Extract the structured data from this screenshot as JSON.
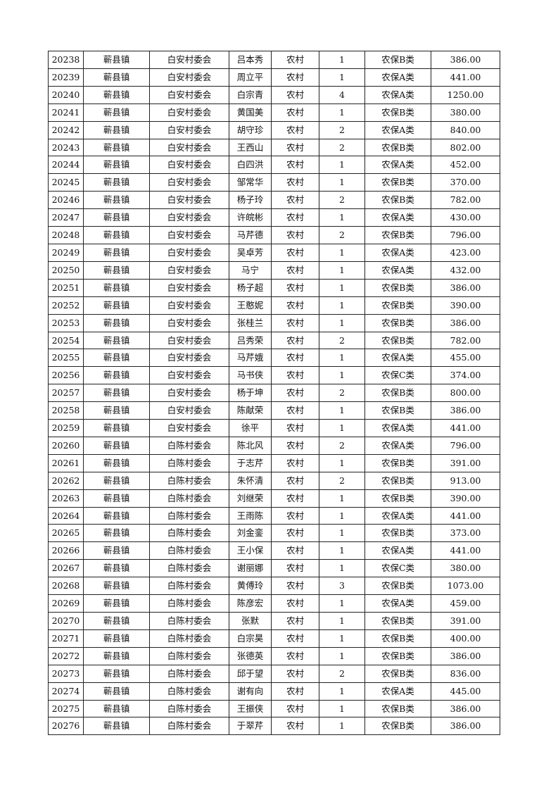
{
  "rows": [
    [
      "20238",
      "蕲县镇",
      "白安村委会",
      "吕本秀",
      "农村",
      "1",
      "农保B类",
      "386.00"
    ],
    [
      "20239",
      "蕲县镇",
      "白安村委会",
      "周立平",
      "农村",
      "1",
      "农保A类",
      "441.00"
    ],
    [
      "20240",
      "蕲县镇",
      "白安村委会",
      "白宗青",
      "农村",
      "4",
      "农保A类",
      "1250.00"
    ],
    [
      "20241",
      "蕲县镇",
      "白安村委会",
      "黄国美",
      "农村",
      "1",
      "农保B类",
      "380.00"
    ],
    [
      "20242",
      "蕲县镇",
      "白安村委会",
      "胡守珍",
      "农村",
      "2",
      "农保A类",
      "840.00"
    ],
    [
      "20243",
      "蕲县镇",
      "白安村委会",
      "王西山",
      "农村",
      "2",
      "农保B类",
      "802.00"
    ],
    [
      "20244",
      "蕲县镇",
      "白安村委会",
      "白四洪",
      "农村",
      "1",
      "农保A类",
      "452.00"
    ],
    [
      "20245",
      "蕲县镇",
      "白安村委会",
      "邹常华",
      "农村",
      "1",
      "农保B类",
      "370.00"
    ],
    [
      "20246",
      "蕲县镇",
      "白安村委会",
      "杨子玲",
      "农村",
      "2",
      "农保B类",
      "782.00"
    ],
    [
      "20247",
      "蕲县镇",
      "白安村委会",
      "许皖彬",
      "农村",
      "1",
      "农保A类",
      "430.00"
    ],
    [
      "20248",
      "蕲县镇",
      "白安村委会",
      "马芹德",
      "农村",
      "2",
      "农保B类",
      "796.00"
    ],
    [
      "20249",
      "蕲县镇",
      "白安村委会",
      "吴卓芳",
      "农村",
      "1",
      "农保A类",
      "423.00"
    ],
    [
      "20250",
      "蕲县镇",
      "白安村委会",
      "马宁",
      "农村",
      "1",
      "农保A类",
      "432.00"
    ],
    [
      "20251",
      "蕲县镇",
      "白安村委会",
      "杨子超",
      "农村",
      "1",
      "农保B类",
      "386.00"
    ],
    [
      "20252",
      "蕲县镇",
      "白安村委会",
      "王憨妮",
      "农村",
      "1",
      "农保B类",
      "390.00"
    ],
    [
      "20253",
      "蕲县镇",
      "白安村委会",
      "张桂兰",
      "农村",
      "1",
      "农保B类",
      "386.00"
    ],
    [
      "20254",
      "蕲县镇",
      "白安村委会",
      "吕秀荣",
      "农村",
      "2",
      "农保B类",
      "782.00"
    ],
    [
      "20255",
      "蕲县镇",
      "白安村委会",
      "马芹娥",
      "农村",
      "1",
      "农保A类",
      "455.00"
    ],
    [
      "20256",
      "蕲县镇",
      "白安村委会",
      "马书侠",
      "农村",
      "1",
      "农保C类",
      "374.00"
    ],
    [
      "20257",
      "蕲县镇",
      "白安村委会",
      "杨于坤",
      "农村",
      "2",
      "农保B类",
      "800.00"
    ],
    [
      "20258",
      "蕲县镇",
      "白安村委会",
      "陈献荣",
      "农村",
      "1",
      "农保B类",
      "386.00"
    ],
    [
      "20259",
      "蕲县镇",
      "白安村委会",
      "徐平",
      "农村",
      "1",
      "农保A类",
      "441.00"
    ],
    [
      "20260",
      "蕲县镇",
      "白陈村委会",
      "陈北风",
      "农村",
      "2",
      "农保A类",
      "796.00"
    ],
    [
      "20261",
      "蕲县镇",
      "白陈村委会",
      "于志芹",
      "农村",
      "1",
      "农保B类",
      "391.00"
    ],
    [
      "20262",
      "蕲县镇",
      "白陈村委会",
      "朱怀清",
      "农村",
      "2",
      "农保B类",
      "913.00"
    ],
    [
      "20263",
      "蕲县镇",
      "白陈村委会",
      "刘继荣",
      "农村",
      "1",
      "农保B类",
      "390.00"
    ],
    [
      "20264",
      "蕲县镇",
      "白陈村委会",
      "王雨陈",
      "农村",
      "1",
      "农保A类",
      "441.00"
    ],
    [
      "20265",
      "蕲县镇",
      "白陈村委会",
      "刘金銮",
      "农村",
      "1",
      "农保B类",
      "373.00"
    ],
    [
      "20266",
      "蕲县镇",
      "白陈村委会",
      "王小保",
      "农村",
      "1",
      "农保A类",
      "441.00"
    ],
    [
      "20267",
      "蕲县镇",
      "白陈村委会",
      "谢丽娜",
      "农村",
      "1",
      "农保C类",
      "380.00"
    ],
    [
      "20268",
      "蕲县镇",
      "白陈村委会",
      "黄傅玲",
      "农村",
      "3",
      "农保B类",
      "1073.00"
    ],
    [
      "20269",
      "蕲县镇",
      "白陈村委会",
      "陈彦宏",
      "农村",
      "1",
      "农保A类",
      "459.00"
    ],
    [
      "20270",
      "蕲县镇",
      "白陈村委会",
      "张默",
      "农村",
      "1",
      "农保B类",
      "391.00"
    ],
    [
      "20271",
      "蕲县镇",
      "白陈村委会",
      "白宗昊",
      "农村",
      "1",
      "农保B类",
      "400.00"
    ],
    [
      "20272",
      "蕲县镇",
      "白陈村委会",
      "张德英",
      "农村",
      "1",
      "农保B类",
      "386.00"
    ],
    [
      "20273",
      "蕲县镇",
      "白陈村委会",
      "邱于望",
      "农村",
      "2",
      "农保B类",
      "836.00"
    ],
    [
      "20274",
      "蕲县镇",
      "白陈村委会",
      "谢有向",
      "农村",
      "1",
      "农保A类",
      "445.00"
    ],
    [
      "20275",
      "蕲县镇",
      "白陈村委会",
      "王振侠",
      "农村",
      "1",
      "农保B类",
      "386.00"
    ],
    [
      "20276",
      "蕲县镇",
      "白陈村委会",
      "于翠芹",
      "农村",
      "1",
      "农保B类",
      "386.00"
    ]
  ]
}
